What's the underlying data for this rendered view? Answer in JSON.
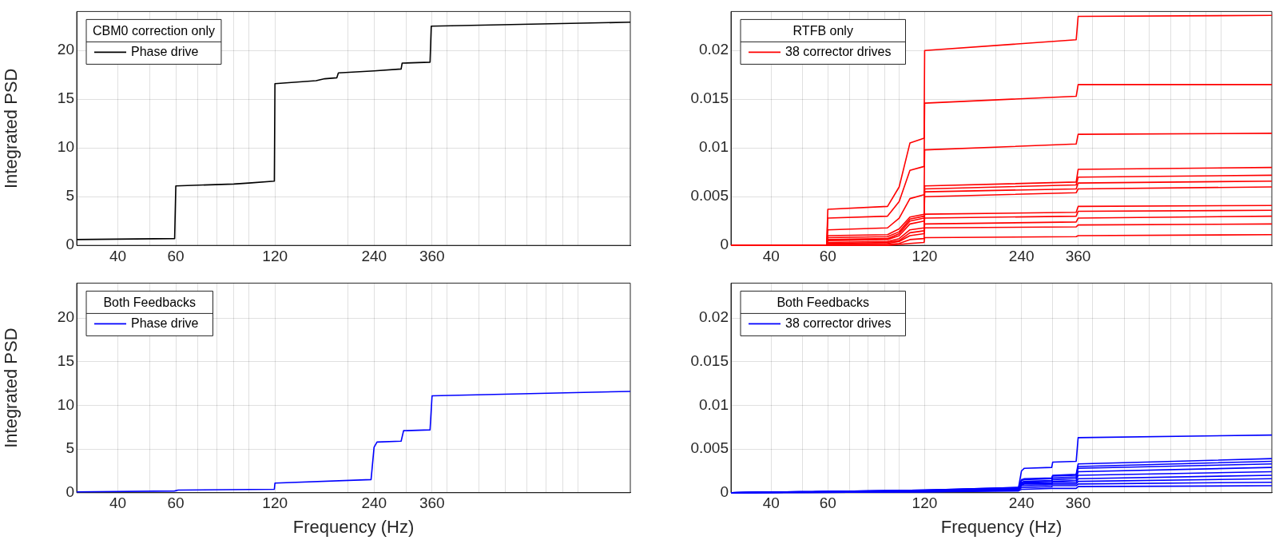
{
  "chart_data": [
    {
      "type": "line",
      "ylabel": "Integrated PSD",
      "legend_title": "CBM0 correction only",
      "legend": "top left",
      "grid": true,
      "log": "x",
      "marker": "none",
      "line_style": "solid",
      "xlim": [
        30,
        1440
      ],
      "xticks": [
        40,
        {
          "value": 50,
          "label": null
        },
        60,
        {
          "value": 70,
          "label": null
        },
        {
          "value": 80,
          "label": null
        },
        {
          "value": 90,
          "label": null
        },
        {
          "value": 100,
          "label": null
        },
        120,
        {
          "value": 200,
          "label": null
        },
        240,
        {
          "value": 300,
          "label": null
        },
        360,
        {
          "value": 400,
          "label": null
        },
        {
          "value": 500,
          "label": null
        },
        {
          "value": 600,
          "label": null
        },
        {
          "value": 700,
          "label": null
        },
        {
          "value": 800,
          "label": null
        },
        {
          "value": 900,
          "label": null
        },
        {
          "value": 1000,
          "label": null
        }
      ],
      "ylim": [
        0,
        24
      ],
      "yticks": [
        0,
        5,
        10,
        15,
        20
      ],
      "x": [
        30,
        59.5,
        60,
        90,
        100,
        119.5,
        120,
        160,
        170,
        185,
        187,
        240,
        290,
        292,
        355,
        358,
        1440
      ],
      "series": [
        {
          "name": "Phase drive",
          "color": "#000000",
          "values": [
            0.6,
            0.7,
            6.1,
            6.3,
            6.4,
            6.6,
            16.6,
            16.9,
            17.1,
            17.2,
            17.7,
            17.9,
            18.1,
            18.7,
            18.8,
            22.5,
            22.9
          ]
        }
      ]
    },
    {
      "type": "line",
      "legend_title": "RTFB only",
      "legend": "top left",
      "grid": true,
      "log": "x",
      "marker": "none",
      "line_style": "solid",
      "xlim": [
        30,
        1440
      ],
      "xticks": [
        40,
        {
          "value": 50,
          "label": null
        },
        60,
        {
          "value": 70,
          "label": null
        },
        {
          "value": 80,
          "label": null
        },
        {
          "value": 90,
          "label": null
        },
        {
          "value": 100,
          "label": null
        },
        120,
        {
          "value": 200,
          "label": null
        },
        240,
        {
          "value": 300,
          "label": null
        },
        360,
        {
          "value": 400,
          "label": null
        },
        {
          "value": 500,
          "label": null
        },
        {
          "value": 600,
          "label": null
        },
        {
          "value": 700,
          "label": null
        },
        {
          "value": 800,
          "label": null
        },
        {
          "value": 900,
          "label": null
        },
        {
          "value": 1000,
          "label": null
        }
      ],
      "ylim": [
        0,
        0.024
      ],
      "yticks": [
        0,
        0.005,
        0.01,
        0.015,
        0.02
      ],
      "x": [
        30,
        59.5,
        60,
        92,
        100,
        108,
        119.5,
        120,
        355,
        360,
        1440
      ],
      "series": [
        {
          "name": "38 corrector drives",
          "color": "#ff0000",
          "values": [
            0,
            0,
            0.0037,
            0.004,
            0.006,
            0.0105,
            0.011,
            0.02,
            0.0211,
            0.0235,
            0.0236
          ]
        },
        {
          "color": "#ff0000",
          "values": [
            0,
            0,
            0.0028,
            0.003,
            0.0045,
            0.0077,
            0.0081,
            0.0146,
            0.0153,
            0.0165,
            0.0165
          ]
        },
        {
          "color": "#ff0000",
          "values": [
            0,
            0,
            0.0016,
            0.0018,
            0.0028,
            0.0048,
            0.0052,
            0.0098,
            0.0104,
            0.0114,
            0.0115
          ]
        },
        {
          "color": "#ff0000",
          "values": [
            0,
            0,
            0.001,
            0.0011,
            0.0017,
            0.0029,
            0.0032,
            0.0061,
            0.0065,
            0.0078,
            0.008
          ]
        },
        {
          "color": "#ff0000",
          "values": [
            0,
            0,
            0.0008,
            0.0009,
            0.0014,
            0.0027,
            0.003,
            0.0058,
            0.0062,
            0.007,
            0.0072
          ]
        },
        {
          "color": "#ff0000",
          "values": [
            0,
            0,
            0.0006,
            0.0007,
            0.0012,
            0.0025,
            0.0028,
            0.0055,
            0.0058,
            0.0064,
            0.0066
          ]
        },
        {
          "color": "#ff0000",
          "values": [
            0,
            0,
            0.0005,
            0.0006,
            0.001,
            0.0022,
            0.0025,
            0.005,
            0.0054,
            0.0058,
            0.006
          ]
        },
        {
          "color": "#ff0000",
          "values": [
            0,
            0,
            0.0003,
            0.0004,
            0.0007,
            0.0016,
            0.0018,
            0.0032,
            0.0034,
            0.004,
            0.0041
          ]
        },
        {
          "color": "#ff0000",
          "values": [
            0,
            0,
            0.0002,
            0.0003,
            0.0005,
            0.0013,
            0.0015,
            0.0028,
            0.003,
            0.0035,
            0.0036
          ]
        },
        {
          "color": "#ff0000",
          "values": [
            0,
            0,
            0.0001,
            0.0002,
            0.0004,
            0.001,
            0.0012,
            0.0022,
            0.0024,
            0.0028,
            0.003
          ]
        },
        {
          "color": "#ff0000",
          "values": [
            0,
            0,
            0.0001,
            0.0001,
            0.0002,
            0.0006,
            0.0007,
            0.0018,
            0.0019,
            0.0021,
            0.0022
          ]
        },
        {
          "color": "#ff0000",
          "values": [
            0,
            0,
            0,
            0,
            0.0001,
            0.0002,
            0.0003,
            0.0008,
            0.0009,
            0.001,
            0.0011
          ]
        }
      ]
    },
    {
      "type": "line",
      "xlabel": "Frequency (Hz)",
      "ylabel": "Integrated PSD",
      "legend_title": "Both Feedbacks",
      "legend": "top left",
      "grid": true,
      "log": "x",
      "marker": "none",
      "line_style": "solid",
      "xlim": [
        30,
        1440
      ],
      "xticks": [
        40,
        {
          "value": 50,
          "label": null
        },
        60,
        {
          "value": 70,
          "label": null
        },
        {
          "value": 80,
          "label": null
        },
        {
          "value": 90,
          "label": null
        },
        {
          "value": 100,
          "label": null
        },
        120,
        {
          "value": 200,
          "label": null
        },
        240,
        {
          "value": 300,
          "label": null
        },
        360,
        {
          "value": 400,
          "label": null
        },
        {
          "value": 500,
          "label": null
        },
        {
          "value": 600,
          "label": null
        },
        {
          "value": 700,
          "label": null
        },
        {
          "value": 800,
          "label": null
        },
        {
          "value": 900,
          "label": null
        },
        {
          "value": 1000,
          "label": null
        }
      ],
      "ylim": [
        0,
        24
      ],
      "yticks": [
        0,
        5,
        10,
        15,
        20
      ],
      "x": [
        30,
        59.5,
        61,
        119.5,
        120,
        235,
        240,
        245,
        290,
        295,
        355,
        360,
        1440
      ],
      "series": [
        {
          "name": "Phase drive",
          "color": "#0000ff",
          "values": [
            0.1,
            0.2,
            0.3,
            0.4,
            1.1,
            1.5,
            5.2,
            5.8,
            5.9,
            7.1,
            7.2,
            11.1,
            11.6
          ]
        }
      ]
    },
    {
      "type": "line",
      "xlabel": "Frequency (Hz)",
      "legend_title": "Both Feedbacks",
      "legend": "top left",
      "grid": true,
      "log": "x",
      "marker": "none",
      "line_style": "solid",
      "xlim": [
        30,
        1440
      ],
      "xticks": [
        40,
        {
          "value": 50,
          "label": null
        },
        60,
        {
          "value": 70,
          "label": null
        },
        {
          "value": 80,
          "label": null
        },
        {
          "value": 90,
          "label": null
        },
        {
          "value": 100,
          "label": null
        },
        120,
        {
          "value": 200,
          "label": null
        },
        240,
        {
          "value": 300,
          "label": null
        },
        360,
        {
          "value": 400,
          "label": null
        },
        {
          "value": 500,
          "label": null
        },
        {
          "value": 600,
          "label": null
        },
        {
          "value": 700,
          "label": null
        },
        {
          "value": 800,
          "label": null
        },
        {
          "value": 900,
          "label": null
        },
        {
          "value": 1000,
          "label": null
        }
      ],
      "ylim": [
        0,
        0.024
      ],
      "yticks": [
        0,
        0.005,
        0.01,
        0.015,
        0.02
      ],
      "x": [
        30,
        120,
        235,
        240,
        245,
        298,
        300,
        355,
        360,
        1440
      ],
      "series": [
        {
          "name": "38 corrector drives",
          "color": "#0000ff",
          "values": [
            0,
            0.0003,
            0.0006,
            0.0025,
            0.0028,
            0.0029,
            0.0035,
            0.0036,
            0.0063,
            0.0066
          ]
        },
        {
          "color": "#0000ff",
          "values": [
            0,
            0.0003,
            0.0006,
            0.0015,
            0.0016,
            0.0017,
            0.002,
            0.0021,
            0.0033,
            0.0039
          ]
        },
        {
          "color": "#0000ff",
          "values": [
            0,
            0.0003,
            0.0005,
            0.0014,
            0.0015,
            0.0016,
            0.0019,
            0.002,
            0.003,
            0.0036
          ]
        },
        {
          "color": "#0000ff",
          "values": [
            0,
            0.0002,
            0.0005,
            0.0012,
            0.0013,
            0.0014,
            0.0017,
            0.0018,
            0.0028,
            0.0033
          ]
        },
        {
          "color": "#0000ff",
          "values": [
            0,
            0.0002,
            0.0004,
            0.0011,
            0.0012,
            0.0013,
            0.0015,
            0.0016,
            0.0024,
            0.0029
          ]
        },
        {
          "color": "#0000ff",
          "values": [
            0,
            0.0002,
            0.0004,
            0.001,
            0.0011,
            0.0011,
            0.0013,
            0.0014,
            0.002,
            0.0024
          ]
        },
        {
          "color": "#0000ff",
          "values": [
            0,
            0.0002,
            0.0004,
            0.0009,
            0.001,
            0.001,
            0.0012,
            0.0012,
            0.0016,
            0.002
          ]
        },
        {
          "color": "#0000ff",
          "values": [
            0,
            0.0002,
            0.0003,
            0.0008,
            0.0008,
            0.0009,
            0.001,
            0.001,
            0.0013,
            0.0016
          ]
        },
        {
          "color": "#0000ff",
          "values": [
            0,
            0.0001,
            0.0003,
            0.0006,
            0.0006,
            0.0007,
            0.0008,
            0.0008,
            0.001,
            0.0012
          ]
        },
        {
          "color": "#0000ff",
          "values": [
            0,
            0.0001,
            0.0002,
            0.0004,
            0.0004,
            0.0005,
            0.0005,
            0.0005,
            0.0007,
            0.0008
          ]
        }
      ]
    }
  ]
}
